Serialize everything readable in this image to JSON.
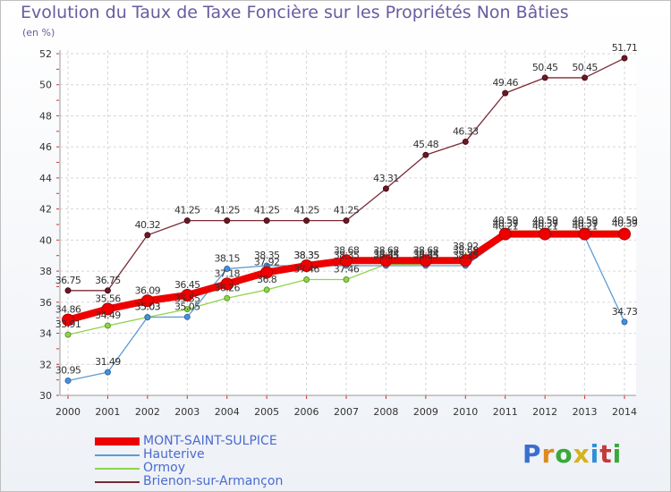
{
  "chart_data": {
    "type": "line",
    "title": "Evolution du Taux de Taxe Foncière sur les Propriétés Non Bâties",
    "ylabel": "(en %)",
    "xlabel": "",
    "ylim": [
      30,
      52
    ],
    "yticks": [
      30,
      32,
      34,
      36,
      38,
      40,
      42,
      44,
      46,
      48,
      50,
      52
    ],
    "categories": [
      "2000",
      "2001",
      "2002",
      "2003",
      "2004",
      "2005",
      "2006",
      "2007",
      "2008",
      "2009",
      "2010",
      "2011",
      "2012",
      "2013",
      "2014"
    ],
    "series": [
      {
        "name": "Brienon-sur-Armançon",
        "color": "#7a2a35",
        "values": [
          36.75,
          36.75,
          40.32,
          41.25,
          41.25,
          41.25,
          41.25,
          41.25,
          43.31,
          45.48,
          46.33,
          49.46,
          50.45,
          50.45,
          51.71
        ],
        "labels": [
          "36.75",
          "36.75",
          "40.32",
          "41.25",
          "41.25",
          "41.25",
          "41.25",
          "41.25",
          "43.31",
          "45.48",
          "46.33",
          "49.46",
          "50.45",
          "50.45",
          "51.71"
        ]
      },
      {
        "name": "Ormoy",
        "color": "#8fd44a",
        "values": [
          33.91,
          34.49,
          35.03,
          35.55,
          36.26,
          36.8,
          37.46,
          37.46,
          38.44,
          38.44,
          38.92,
          40.59,
          40.59,
          40.59,
          40.59
        ],
        "labels": [
          "33.91",
          "34.49",
          "35.03",
          "35.55",
          "36.26",
          "36.8",
          "37.46",
          "37.46",
          "38.44",
          "38.44",
          "38.92",
          "40.59",
          "40.59",
          "40.59",
          "40.59"
        ]
      },
      {
        "name": "Hauterive",
        "color": "#5b9bd5",
        "values": [
          30.95,
          31.49,
          35.03,
          35.05,
          38.15,
          38.35,
          38.35,
          38.35,
          38.35,
          38.35,
          38.35,
          40.21,
          40.21,
          40.21,
          34.73
        ],
        "labels": [
          "30.95",
          "31.49",
          "35.03",
          "35.05",
          "38.15",
          "38.35",
          "38.35",
          "38.35",
          "38.35",
          "38.35",
          "38.35",
          "40.21",
          "40.21",
          "40.21",
          "34.73"
        ]
      },
      {
        "name": "MONT-SAINT-SULPICE",
        "color": "#ee0000",
        "values": [
          34.86,
          35.56,
          36.09,
          36.45,
          37.18,
          37.92,
          38.35,
          38.68,
          38.68,
          38.68,
          38.68,
          40.39,
          40.39,
          40.39,
          40.39
        ],
        "labels": [
          "34.86",
          "35.56",
          "36.09",
          "36.45",
          "37.18",
          "37.92",
          "38.35",
          "38.68",
          "38.68",
          "38.68",
          "38.68",
          "40.39",
          "40.39",
          "40.39",
          "40.39"
        ]
      }
    ]
  },
  "legend": {
    "items": [
      {
        "label": "MONT-SAINT-SULPICE",
        "color": "#ee0000",
        "text_color": "#4a6bd0"
      },
      {
        "label": "Hauterive",
        "color": "#5b9bd5",
        "text_color": "#4a6bd0"
      },
      {
        "label": "Ormoy",
        "color": "#8fd44a",
        "text_color": "#4a6bd0"
      },
      {
        "label": "Brienon-sur-Armançon",
        "color": "#7a2a35",
        "text_color": "#4a6bd0"
      }
    ]
  },
  "brand": {
    "chars": [
      "P",
      "r",
      "o",
      "x",
      "i",
      "t",
      "i"
    ]
  }
}
